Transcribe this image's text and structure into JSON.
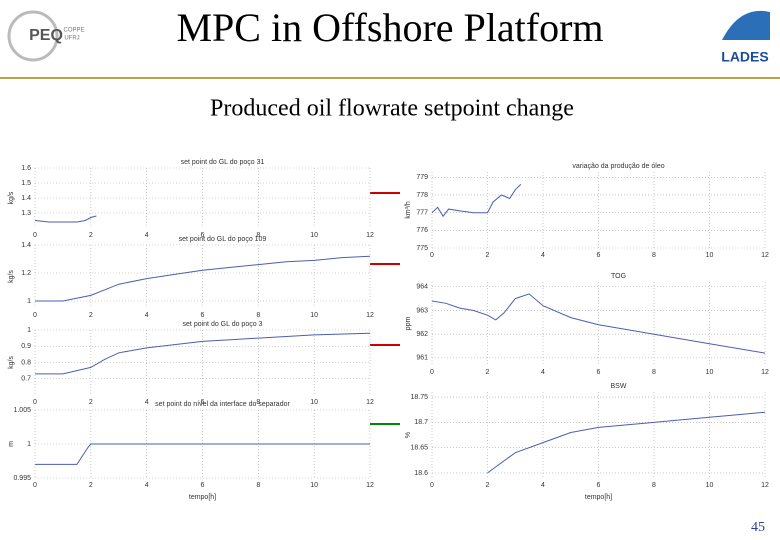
{
  "header": {
    "title": "MPC in Offshore Platform",
    "subtitle": "Produced oil flowrate setpoint change",
    "logo_left": "PEQ",
    "logo_left_sub": [
      "COPPE",
      "UFRJ"
    ],
    "logo_right": "LADES",
    "page_number": 45
  },
  "chart_data": [
    {
      "type": "line",
      "title": "set point do GL do poço 31",
      "ylabel": "kg/s",
      "x": [
        0,
        0.5,
        1,
        1.5,
        1.8,
        2.0,
        2.2
      ],
      "values": [
        1.25,
        1.24,
        1.24,
        1.24,
        1.25,
        1.27,
        1.28
      ],
      "color": "#4a5fb0",
      "xlim": [
        0,
        12
      ],
      "xticks": [
        0,
        2,
        4,
        6,
        8,
        10,
        12
      ],
      "ylim": [
        1.2,
        1.6
      ],
      "yticks": [
        1.3,
        1.4,
        1.5,
        1.6
      ],
      "grid": true
    },
    {
      "type": "line",
      "title": "set point do GL do poço 109",
      "ylabel": "kg/s",
      "x": [
        0,
        1,
        2,
        2.5,
        3,
        4,
        5,
        6,
        7,
        8,
        9,
        10,
        11,
        12
      ],
      "values": [
        1.0,
        1.0,
        1.04,
        1.08,
        1.12,
        1.16,
        1.19,
        1.22,
        1.24,
        1.26,
        1.28,
        1.29,
        1.31,
        1.32
      ],
      "color": "#4a5fb0",
      "xlim": [
        0,
        12
      ],
      "xticks": [
        0,
        2,
        4,
        6,
        8,
        10,
        12
      ],
      "ylim": [
        0.95,
        1.4
      ],
      "yticks": [
        1,
        1.2,
        1.4
      ],
      "grid": true
    },
    {
      "type": "line",
      "title": "set point do GL do poço 3",
      "ylabel": "kg/s",
      "x": [
        0,
        1,
        2,
        2.5,
        3,
        4,
        5,
        6,
        7,
        8,
        9,
        10,
        12
      ],
      "values": [
        0.73,
        0.73,
        0.77,
        0.82,
        0.86,
        0.89,
        0.91,
        0.93,
        0.94,
        0.95,
        0.96,
        0.97,
        0.98
      ],
      "color": "#4a5fb0",
      "xlim": [
        0,
        12
      ],
      "xticks": [
        0,
        2,
        4,
        6,
        8,
        10,
        12
      ],
      "ylim": [
        0.6,
        1.0
      ],
      "yticks": [
        0.7,
        0.8,
        0.9,
        1
      ],
      "grid": true
    },
    {
      "type": "line",
      "title": "set point do nível da interface do separador",
      "ylabel": "m",
      "xlabel": "tempo[h]",
      "x": [
        0,
        1.5,
        1.9,
        2,
        4,
        6,
        8,
        10,
        12
      ],
      "values": [
        0.997,
        0.997,
        0.9995,
        1.0,
        1.0,
        1.0,
        1.0,
        1.0,
        1.0
      ],
      "color": "#4a5fb0",
      "xlim": [
        0,
        12
      ],
      "xticks": [
        0,
        2,
        4,
        6,
        8,
        10,
        12
      ],
      "ylim": [
        0.995,
        1.005
      ],
      "yticks": [
        0.995,
        1,
        1.005
      ],
      "grid": true
    },
    {
      "type": "line",
      "title": "variação da produção de óleo",
      "ylabel": "km³/h",
      "x": [
        0,
        0.2,
        0.4,
        0.6,
        1,
        1.5,
        2,
        2.2,
        2.5,
        2.8,
        3,
        3.2
      ],
      "values": [
        777,
        777.3,
        776.8,
        777.2,
        777.1,
        777,
        777,
        777.6,
        778,
        777.8,
        778.3,
        778.6
      ],
      "color": "#4a5fb0",
      "xlim": [
        0,
        12
      ],
      "xticks": [
        0,
        2,
        4,
        6,
        8,
        10,
        12
      ],
      "ylim": [
        775,
        779.3
      ],
      "yticks": [
        775,
        776,
        777,
        778,
        779
      ],
      "grid": true
    },
    {
      "type": "line",
      "title": "TOG",
      "ylabel": "ppm",
      "x": [
        0,
        0.5,
        1,
        1.5,
        2,
        2.3,
        2.6,
        3,
        3.5,
        4,
        5,
        6,
        8,
        10,
        12
      ],
      "values": [
        963.4,
        963.3,
        963.1,
        963.0,
        962.8,
        962.6,
        962.9,
        963.5,
        963.7,
        963.2,
        962.7,
        962.4,
        962.0,
        961.6,
        961.2
      ],
      "color": "#4a5fb0",
      "xlim": [
        0,
        12
      ],
      "xticks": [
        0,
        2,
        4,
        6,
        8,
        10,
        12
      ],
      "ylim": [
        960.7,
        964.2
      ],
      "yticks": [
        961,
        962,
        963,
        964
      ],
      "grid": true
    },
    {
      "type": "line",
      "title": "BSW",
      "ylabel": "%",
      "xlabel": "tempo[h]",
      "x": [
        2,
        3,
        4,
        5,
        6,
        7,
        8,
        9,
        10,
        11,
        12
      ],
      "values": [
        18.6,
        18.64,
        18.66,
        18.68,
        18.69,
        18.695,
        18.7,
        18.705,
        18.71,
        18.715,
        18.72
      ],
      "color": "#4a5fb0",
      "xlim": [
        0,
        12
      ],
      "xticks": [
        0,
        2,
        4,
        6,
        8,
        10,
        12
      ],
      "ylim": [
        18.59,
        18.76
      ],
      "yticks": [
        18.6,
        18.65,
        18.7,
        18.75
      ],
      "grid": true
    }
  ]
}
